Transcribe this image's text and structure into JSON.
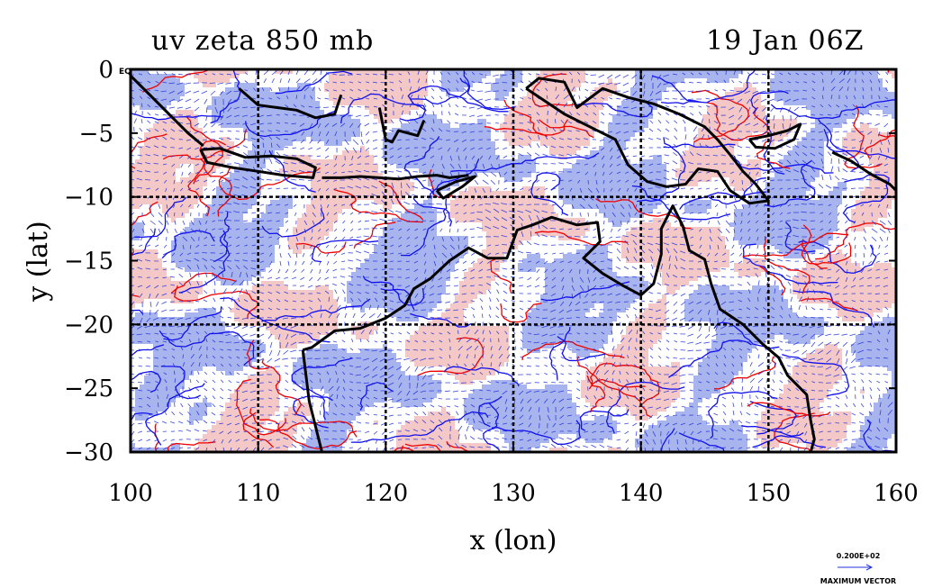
{
  "title_left": "uv zeta 850 mb",
  "title_right": "19 Jan 06Z",
  "corner_label": "EQ",
  "max_vector": {
    "value_label": "0.200E+02",
    "caption": "MAXIMUM VECTOR"
  },
  "colors": {
    "positive_contour": "#ee0000",
    "positive_fill": "#f5c8c8",
    "negative_contour": "#1010ee",
    "negative_fill": "#a8b4ee",
    "coastline": "#000000",
    "vector": "#2233dd"
  },
  "chart_data": {
    "type": "vector-contour map",
    "xlabel": "x (lon)",
    "ylabel": "y (lat)",
    "xlim": [
      100,
      160
    ],
    "ylim": [
      -30,
      0
    ],
    "xticks": [
      100,
      110,
      120,
      130,
      140,
      150,
      160
    ],
    "yticks": [
      0,
      -5,
      -10,
      -15,
      -20,
      -25,
      -30
    ],
    "grid_x": [
      110,
      120,
      130,
      140,
      150
    ],
    "grid_y": [
      -10,
      -20
    ],
    "grid": true
  }
}
